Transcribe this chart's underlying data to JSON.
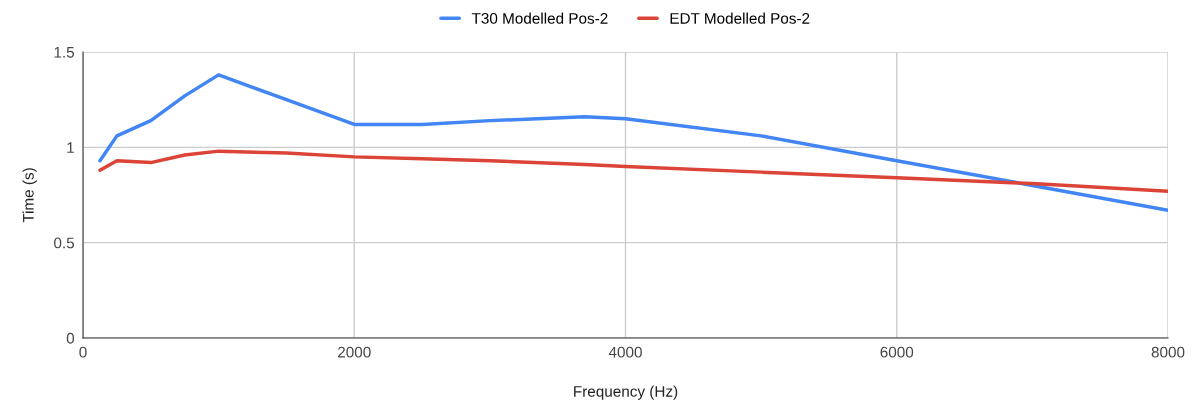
{
  "chart_data": {
    "type": "line",
    "xlabel": "Frequency (Hz)",
    "ylabel": "Time (s)",
    "x": [
      125,
      250,
      500,
      750,
      1000,
      1500,
      2000,
      2500,
      3000,
      3700,
      4000,
      5000,
      6000,
      7000,
      8000
    ],
    "series": [
      {
        "name": "T30 Modelled Pos-2",
        "color": "#4285f4",
        "values": [
          0.93,
          1.06,
          1.14,
          1.27,
          1.38,
          1.25,
          1.12,
          1.12,
          1.14,
          1.16,
          1.15,
          1.06,
          0.93,
          0.8,
          0.67
        ]
      },
      {
        "name": "EDT Modelled Pos-2",
        "color": "#db4437",
        "values": [
          0.88,
          0.93,
          0.92,
          0.96,
          0.98,
          0.97,
          0.95,
          0.94,
          0.93,
          0.91,
          0.9,
          0.87,
          0.84,
          0.81,
          0.77
        ]
      }
    ],
    "xlim": [
      0,
      8000
    ],
    "xticks": [
      0,
      2000,
      4000,
      6000,
      8000
    ],
    "ylim": [
      0,
      1.5
    ],
    "yticks": [
      0,
      0.5,
      1,
      1.5
    ],
    "grid": true,
    "legend": "top",
    "marker": "none",
    "line_style": "solid"
  }
}
